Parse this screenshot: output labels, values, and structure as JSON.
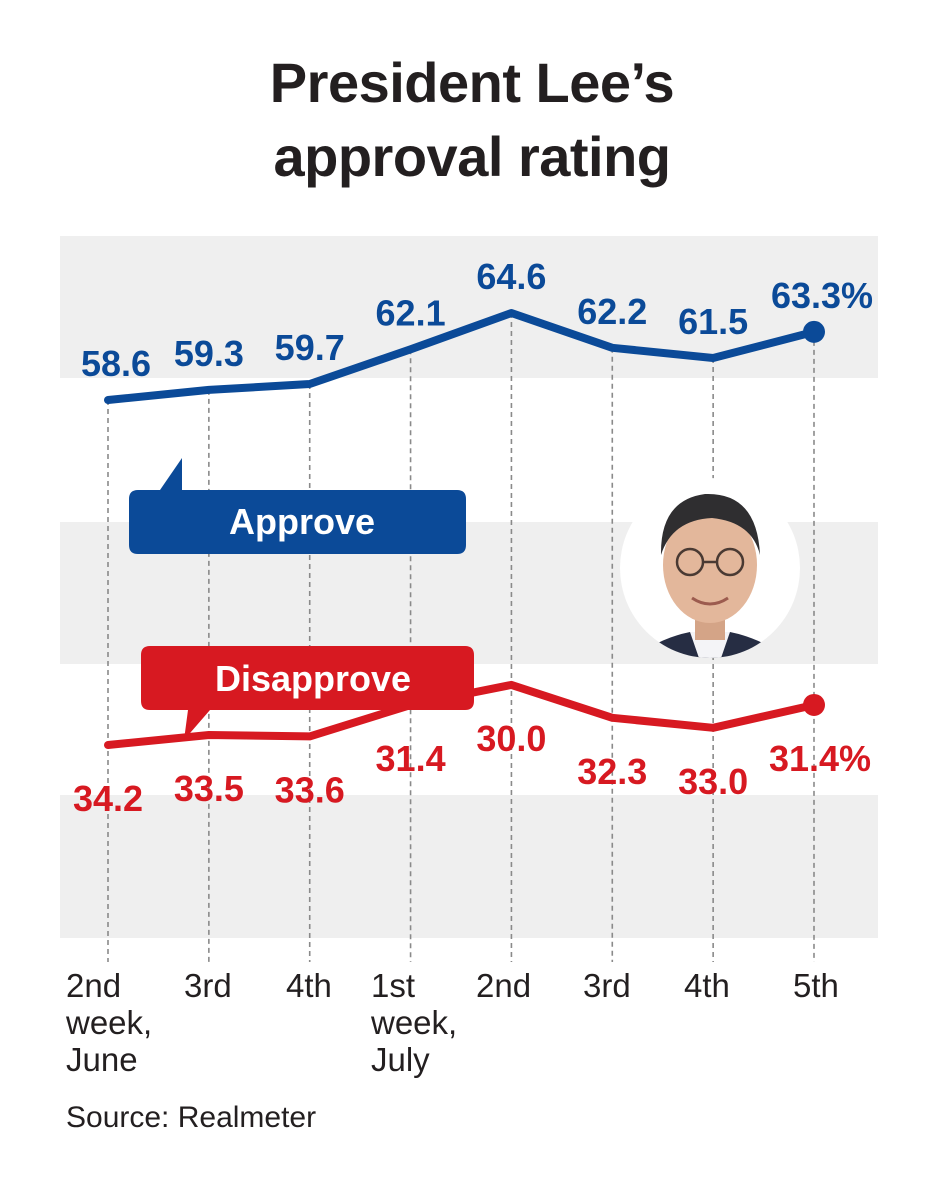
{
  "colors": {
    "approve": "#0b4a98",
    "disapprove": "#d71921",
    "band": "#efefef",
    "text": "#231f20"
  },
  "chart_data": {
    "type": "line",
    "title": "President Lee’s approval rating",
    "title_lines": [
      "President Lee’s",
      "approval rating"
    ],
    "categories": [
      [
        "2nd",
        "week,",
        "June"
      ],
      [
        "3rd"
      ],
      [
        "4th"
      ],
      [
        "1st",
        "week,",
        "July"
      ],
      [
        "2nd"
      ],
      [
        "3rd"
      ],
      [
        "4th"
      ],
      [
        "5th"
      ]
    ],
    "series": [
      {
        "name": "Approve",
        "values": [
          58.6,
          59.3,
          59.7,
          62.1,
          64.6,
          62.2,
          61.5,
          63.3
        ],
        "labels": [
          "58.6",
          "59.3",
          "59.7",
          "62.1",
          "64.6",
          "62.2",
          "61.5",
          "63.3%"
        ]
      },
      {
        "name": "Disapprove",
        "values": [
          34.2,
          33.5,
          33.6,
          31.4,
          30.0,
          32.3,
          33.0,
          31.4
        ],
        "labels": [
          "34.2",
          "33.5",
          "33.6",
          "31.4",
          "30.0",
          "32.3",
          "33.0",
          "31.4%"
        ]
      }
    ],
    "unit": "%",
    "grid": "vertical dashed",
    "legend": "callout boxes",
    "source": "Source: Realmeter"
  }
}
